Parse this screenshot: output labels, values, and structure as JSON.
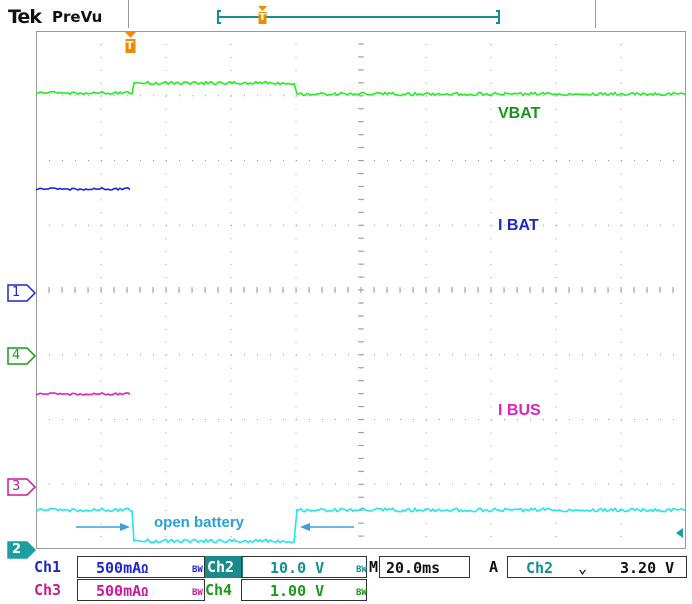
{
  "header": {
    "brand": "Tek",
    "mode": "PreVu"
  },
  "trigger_markers": {
    "top": "T",
    "main": "T"
  },
  "channel_markers": [
    {
      "id": "1",
      "color": "#1e28c8"
    },
    {
      "id": "4",
      "color": "#1a9a1a"
    },
    {
      "id": "3",
      "color": "#c81a9a"
    },
    {
      "id": "2",
      "color": "#1aa0a0"
    }
  ],
  "trace_labels": {
    "vbat": "VBAT",
    "ibat": "I BAT",
    "ibus": "I BUS"
  },
  "annotation": {
    "text": "open battery"
  },
  "colors": {
    "green": "#22ee22",
    "blue": "#1a28d8",
    "magenta": "#e020c0",
    "cyan": "#22e6e6",
    "grid": "#9a9a9a"
  },
  "footer": {
    "row1": {
      "ch1": "Ch1",
      "ch1_scale": "500mA",
      "ch1_sym": "Ω",
      "bw": "BW",
      "ch2": "Ch2",
      "ch2_scale": "10.0 V",
      "m": "M",
      "timebase": "20.0ms",
      "a": "A",
      "trig_ch": "Ch2",
      "slope": "⌄",
      "trig_level": "3.20 V"
    },
    "row2": {
      "ch3": "Ch3",
      "ch3_scale": "500mA",
      "ch3_sym": "Ω",
      "ch4": "Ch4",
      "ch4_scale": "1.00 V"
    }
  }
}
